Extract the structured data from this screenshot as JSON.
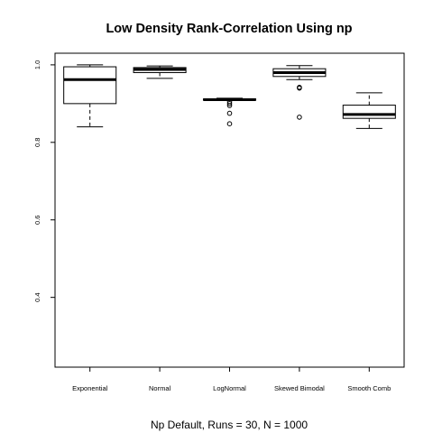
{
  "chart_data": {
    "type": "box",
    "title": "Low Density Rank-Correlation Using np",
    "xlabel": "Np Default, Runs = 30, N = 1000",
    "ylabel": "",
    "ylim": [
      0.22,
      1.03
    ],
    "yticks": [
      "0.4",
      "0.6",
      "0.8",
      "1.0"
    ],
    "grid": false,
    "categories": [
      "Exponential",
      "Normal",
      "LogNormal",
      "Skewed Bimodal",
      "Smooth Comb"
    ],
    "boxes": [
      {
        "name": "Exponential",
        "whisker_low": 0.84,
        "q1": 0.9,
        "median": 0.962,
        "q3": 0.995,
        "whisker_high": 1.0,
        "outliers": []
      },
      {
        "name": "Normal",
        "whisker_low": 0.965,
        "q1": 0.98,
        "median": 0.988,
        "q3": 0.993,
        "whisker_high": 0.997,
        "outliers": []
      },
      {
        "name": "LogNormal",
        "whisker_low": 0.908,
        "q1": 0.909,
        "median": 0.91,
        "q3": 0.912,
        "whisker_high": 0.914,
        "outliers": [
          0.848,
          0.875,
          0.895,
          0.9,
          0.905
        ]
      },
      {
        "name": "Skewed Bimodal",
        "whisker_low": 0.962,
        "q1": 0.97,
        "median": 0.98,
        "q3": 0.99,
        "whisker_high": 0.998,
        "outliers": [
          0.94,
          0.942,
          0.865
        ]
      },
      {
        "name": "Smooth Comb",
        "whisker_low": 0.836,
        "q1": 0.862,
        "median": 0.872,
        "q3": 0.896,
        "whisker_high": 0.928,
        "outliers": []
      }
    ]
  }
}
